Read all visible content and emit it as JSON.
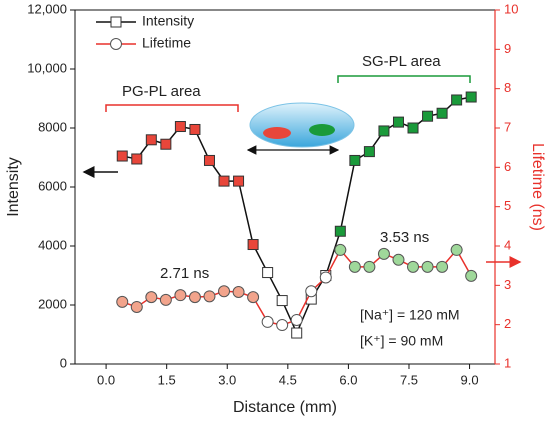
{
  "chart_data": {
    "type": "line",
    "xlabel": "Distance (mm)",
    "ylabel": "Intensity",
    "y2label": "Lifetime (ns)",
    "xlim": [
      -0.77,
      9.63
    ],
    "xticks": [
      {
        "value": 0,
        "label": "0.0"
      },
      {
        "value": 1.5,
        "label": "1.5"
      },
      {
        "value": 3,
        "label": "3.0"
      },
      {
        "value": 4.5,
        "label": "4.5"
      },
      {
        "value": 6,
        "label": "6.0"
      },
      {
        "value": 7.5,
        "label": "7.5"
      },
      {
        "value": 9,
        "label": "9.0"
      }
    ],
    "ylim": [
      0,
      12000
    ],
    "yticks": [
      0,
      2000,
      4000,
      6000,
      8000,
      {
        "value": 10000,
        "label": "10,000"
      },
      {
        "value": 12000,
        "label": "12,000"
      }
    ],
    "y2lim": [
      1,
      10
    ],
    "y2ticks": [
      1,
      2,
      3,
      4,
      5,
      6,
      7,
      8,
      9,
      10
    ],
    "legend": "upper left",
    "x": [
      0.4,
      0.76,
      1.12,
      1.48,
      1.84,
      2.2,
      2.56,
      2.92,
      3.28,
      3.64,
      4.0,
      4.36,
      4.72,
      5.08,
      5.44,
      5.8,
      6.16,
      6.52,
      6.88,
      7.24,
      7.6,
      7.96,
      8.32,
      8.68,
      9.04
    ],
    "series": [
      {
        "name": "Intensity",
        "color": "#111111",
        "marker": "square",
        "values": [
          7050,
          6950,
          7600,
          7450,
          8050,
          7950,
          6900,
          6200,
          6200,
          4050,
          3100,
          2150,
          1050,
          2200,
          3000,
          4500,
          6900,
          7200,
          7900,
          8200,
          8000,
          8400,
          8500,
          8950,
          9050
        ],
        "marker_colors": [
          "#e8463a",
          "#e8463a",
          "#e8463a",
          "#e8463a",
          "#e8463a",
          "#e8463a",
          "#e8463a",
          "#e8463a",
          "#e8463a",
          "#e8463a",
          "#ffffff",
          "#ffffff",
          "#ffffff",
          "#ffffff",
          "#ffffff",
          "#1a9a3a",
          "#1a9a3a",
          "#1a9a3a",
          "#1a9a3a",
          "#1a9a3a",
          "#1a9a3a",
          "#1a9a3a",
          "#1a9a3a",
          "#1a9a3a",
          "#1a9a3a"
        ]
      },
      {
        "name": "Lifetime",
        "color": "#e8312b",
        "marker": "circle",
        "axis": "y2",
        "values": [
          2.58,
          2.45,
          2.7,
          2.63,
          2.75,
          2.7,
          2.72,
          2.85,
          2.83,
          2.7,
          2.07,
          1.99,
          2.12,
          2.85,
          3.2,
          3.9,
          3.47,
          3.47,
          3.8,
          3.65,
          3.47,
          3.47,
          3.47,
          3.9,
          3.24
        ],
        "marker_colors": [
          "#f2a48c",
          "#f2a48c",
          "#f2a48c",
          "#f2a48c",
          "#f2a48c",
          "#f2a48c",
          "#f2a48c",
          "#f2a48c",
          "#f2a48c",
          "#f2a48c",
          "#ffffff",
          "#ffffff",
          "#ffffff",
          "#ffffff",
          "#ffffff",
          "#9fd89a",
          "#9fd89a",
          "#9fd89a",
          "#9fd89a",
          "#9fd89a",
          "#9fd89a",
          "#9fd89a",
          "#9fd89a",
          "#9fd89a",
          "#9fd89a"
        ]
      }
    ],
    "annotations": [
      "PG-PL area",
      "SG-PL area",
      "2.71 ns",
      "3.53 ns",
      "[Na⁺] = 120 mM",
      "[K⁺] = 90 mM"
    ]
  }
}
